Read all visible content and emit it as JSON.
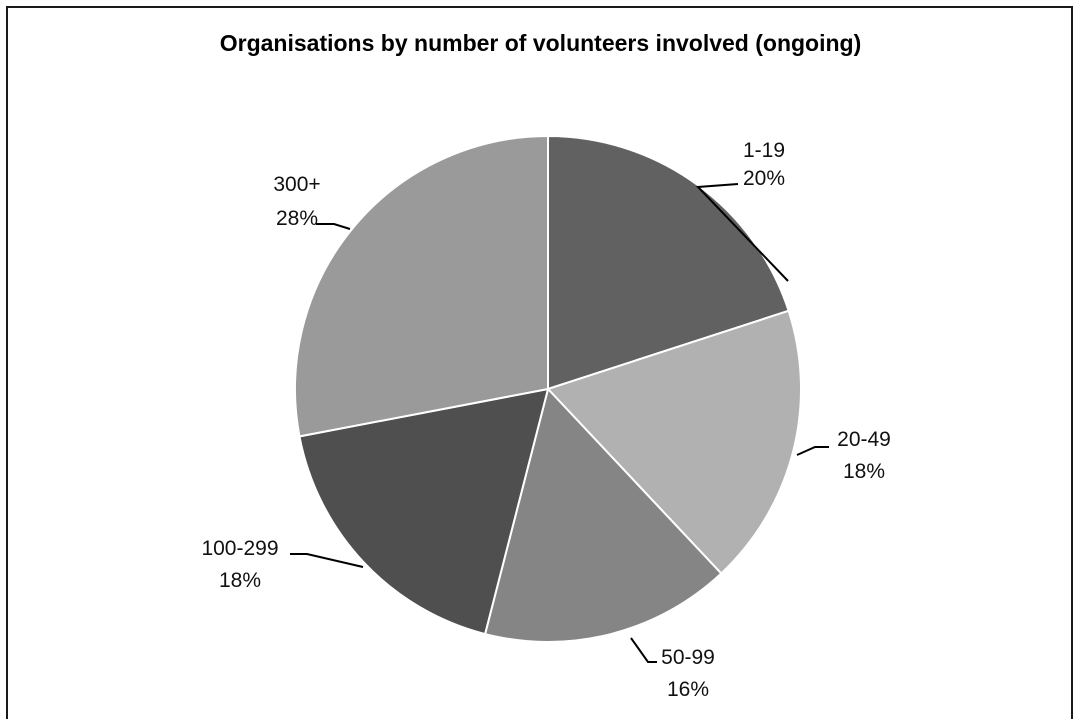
{
  "chart_data": {
    "type": "pie",
    "title": "Organisations by number of volunteers involved (ongoing)",
    "start_angle_deg": 0,
    "direction": "clockwise",
    "slices": [
      {
        "label": "1-19",
        "value": 20,
        "value_label": "20%",
        "color": "#616161"
      },
      {
        "label": "20-49",
        "value": 18,
        "value_label": "18%",
        "color": "#b1b1b1"
      },
      {
        "label": "50-99",
        "value": 16,
        "value_label": "16%",
        "color": "#858585"
      },
      {
        "label": "100-299",
        "value": 18,
        "value_label": "18%",
        "color": "#4f4f4f"
      },
      {
        "label": "300+",
        "value": 28,
        "value_label": "28%",
        "color": "#9a9a9a"
      }
    ],
    "legend": "none",
    "slice_border_color": "#ffffff"
  }
}
